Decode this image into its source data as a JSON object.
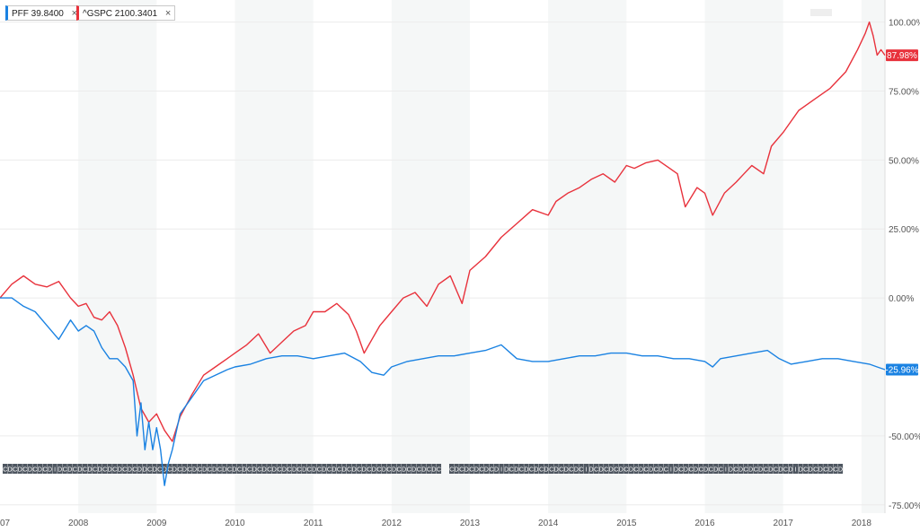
{
  "legend": [
    {
      "label": "PFF 39.8400",
      "color": "#1a82e2",
      "close": "×"
    },
    {
      "label": "^GSPC 2100.3401",
      "color": "#e8323c",
      "close": "×"
    }
  ],
  "chart_data": {
    "type": "line",
    "x_ticks": [
      "07",
      "2008",
      "2009",
      "2010",
      "2011",
      "2012",
      "2013",
      "2014",
      "2015",
      "2016",
      "2017",
      "2018"
    ],
    "y_ticks": [
      "100.00%",
      "75.00%",
      "50.00%",
      "25.00%",
      "0.00%",
      "-50.00%",
      "-75.00%"
    ],
    "ylim": [
      -78,
      108
    ],
    "xlim": [
      2007.0,
      2018.3
    ],
    "grid": true,
    "series": [
      {
        "name": "^GSPC",
        "color": "#e8323c",
        "last_label": "87.98%",
        "x": [
          2007.0,
          2007.15,
          2007.3,
          2007.45,
          2007.6,
          2007.75,
          2007.9,
          2008.0,
          2008.1,
          2008.2,
          2008.3,
          2008.4,
          2008.5,
          2008.6,
          2008.7,
          2008.8,
          2008.9,
          2009.0,
          2009.1,
          2009.2,
          2009.3,
          2009.45,
          2009.6,
          2009.75,
          2009.9,
          2010.0,
          2010.15,
          2010.3,
          2010.45,
          2010.6,
          2010.75,
          2010.9,
          2011.0,
          2011.15,
          2011.3,
          2011.45,
          2011.55,
          2011.65,
          2011.75,
          2011.85,
          2012.0,
          2012.15,
          2012.3,
          2012.45,
          2012.6,
          2012.75,
          2012.9,
          2013.0,
          2013.2,
          2013.4,
          2013.6,
          2013.8,
          2014.0,
          2014.1,
          2014.25,
          2014.4,
          2014.55,
          2014.7,
          2014.85,
          2015.0,
          2015.1,
          2015.25,
          2015.4,
          2015.55,
          2015.65,
          2015.75,
          2015.9,
          2016.0,
          2016.1,
          2016.25,
          2016.4,
          2016.5,
          2016.6,
          2016.75,
          2016.85,
          2017.0,
          2017.2,
          2017.4,
          2017.6,
          2017.8,
          2017.95,
          2018.05,
          2018.1,
          2018.15,
          2018.2,
          2018.25,
          2018.3
        ],
        "values": [
          0,
          5,
          8,
          5,
          4,
          6,
          0,
          -3,
          -2,
          -7,
          -8,
          -5,
          -10,
          -18,
          -28,
          -40,
          -45,
          -42,
          -48,
          -52,
          -43,
          -35,
          -28,
          -25,
          -22,
          -20,
          -17,
          -13,
          -20,
          -16,
          -12,
          -10,
          -5,
          -5,
          -2,
          -6,
          -12,
          -20,
          -15,
          -10,
          -5,
          0,
          2,
          -3,
          5,
          8,
          -2,
          10,
          15,
          22,
          27,
          32,
          30,
          35,
          38,
          40,
          43,
          45,
          42,
          48,
          47,
          49,
          50,
          47,
          45,
          33,
          40,
          38,
          30,
          38,
          42,
          45,
          48,
          45,
          55,
          60,
          68,
          72,
          76,
          82,
          90,
          96,
          100,
          95,
          88,
          90,
          87.98
        ]
      },
      {
        "name": "PFF",
        "color": "#1a82e2",
        "last_label": "-25.96%",
        "x": [
          2007.0,
          2007.15,
          2007.3,
          2007.45,
          2007.6,
          2007.75,
          2007.9,
          2008.0,
          2008.1,
          2008.2,
          2008.3,
          2008.4,
          2008.5,
          2008.6,
          2008.7,
          2008.75,
          2008.8,
          2008.85,
          2008.9,
          2008.95,
          2009.0,
          2009.05,
          2009.1,
          2009.15,
          2009.2,
          2009.3,
          2009.45,
          2009.6,
          2009.75,
          2009.9,
          2010.0,
          2010.2,
          2010.4,
          2010.6,
          2010.8,
          2011.0,
          2011.2,
          2011.4,
          2011.6,
          2011.75,
          2011.9,
          2012.0,
          2012.2,
          2012.4,
          2012.6,
          2012.8,
          2013.0,
          2013.2,
          2013.4,
          2013.6,
          2013.8,
          2014.0,
          2014.2,
          2014.4,
          2014.6,
          2014.8,
          2015.0,
          2015.2,
          2015.4,
          2015.6,
          2015.8,
          2016.0,
          2016.1,
          2016.2,
          2016.4,
          2016.6,
          2016.8,
          2016.95,
          2017.1,
          2017.3,
          2017.5,
          2017.7,
          2017.9,
          2018.1,
          2018.2,
          2018.3
        ],
        "values": [
          0,
          0,
          -3,
          -5,
          -10,
          -15,
          -8,
          -12,
          -10,
          -12,
          -18,
          -22,
          -22,
          -25,
          -30,
          -50,
          -38,
          -55,
          -45,
          -55,
          -47,
          -55,
          -68,
          -60,
          -55,
          -42,
          -36,
          -30,
          -28,
          -26,
          -25,
          -24,
          -22,
          -21,
          -21,
          -22,
          -21,
          -20,
          -23,
          -27,
          -28,
          -25,
          -23,
          -22,
          -21,
          -21,
          -20,
          -19,
          -17,
          -22,
          -23,
          -23,
          -22,
          -21,
          -21,
          -20,
          -20,
          -21,
          -21,
          -22,
          -22,
          -23,
          -25,
          -22,
          -21,
          -20,
          -19,
          -22,
          -24,
          -23,
          -22,
          -22,
          -23,
          -24,
          -25,
          -25.96
        ]
      }
    ]
  },
  "colors": {
    "band": "#f5f7f7",
    "grid": "#ececec",
    "axis_text": "#555555",
    "marker_fill": "#4e5660"
  },
  "markers": {
    "row1": [
      "C",
      "D",
      "C",
      "D",
      "C",
      "D",
      "C",
      "D",
      "C",
      "D",
      "I",
      "D",
      "C",
      "D",
      "C",
      "D",
      "C",
      "D",
      "C",
      "D",
      "C",
      "D",
      "C",
      "D",
      "C",
      "D",
      "C",
      "D",
      "D",
      "C",
      "D",
      "C",
      "D",
      "C",
      "D",
      "C",
      "D",
      "C",
      "D",
      "C",
      "D",
      "C",
      "D",
      "C",
      "D",
      "C",
      "D",
      "C",
      "D",
      "C",
      "D",
      "C",
      "D",
      "C",
      "D",
      "C",
      "D",
      "C",
      "D",
      "C",
      "D",
      "C",
      "D",
      "C",
      "D",
      "C",
      "D",
      "C",
      "D",
      "C",
      "D",
      "C",
      "D",
      "C",
      "D",
      "C",
      "D",
      "C",
      "D",
      "C",
      "D",
      "C",
      "D",
      "C",
      "D",
      "C",
      "D",
      "C"
    ],
    "row2": [
      "C",
      "D",
      "C",
      "D",
      "C",
      "D",
      "C",
      "D",
      "C",
      "D",
      "I",
      "D",
      "C",
      "D",
      "C",
      "D",
      "C",
      "D",
      "C",
      "D",
      "C",
      "D",
      "C",
      "D",
      "C",
      "D",
      "C",
      "I",
      "D",
      "C",
      "D",
      "C",
      "D",
      "C",
      "D",
      "C",
      "D",
      "C",
      "D",
      "C",
      "D",
      "C",
      "D",
      "C",
      "I",
      "D",
      "C",
      "D",
      "C",
      "D",
      "C",
      "D",
      "C",
      "D",
      "C",
      "I",
      "D",
      "C",
      "D",
      "C",
      "D",
      "C",
      "D",
      "C",
      "D",
      "C",
      "D",
      "C",
      "D",
      "I",
      "D",
      "C",
      "D",
      "C",
      "D",
      "C",
      "D",
      "C",
      "D"
    ]
  }
}
